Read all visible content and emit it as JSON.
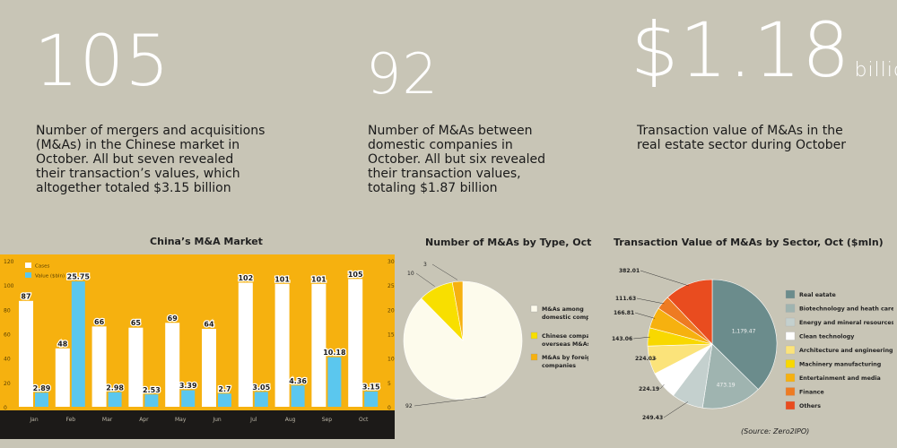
{
  "stats": [
    {
      "number": "105",
      "unit": "",
      "text": [
        "Number of mergers and acquisitions",
        "(M&As) in the Chinese market in",
        "October. All but seven revealed",
        "their transaction’s values, which",
        "altogether totaled $3.15 billion"
      ]
    },
    {
      "number": "92",
      "unit": "",
      "text": [
        "Number of M&As between",
        "domestic companies in",
        "October. All but six revealed",
        "their transaction values,",
        "totaling $1.87 billion"
      ]
    },
    {
      "number": "$1.18",
      "unit": "billion",
      "text": [
        "Transaction value of M&As in the",
        "real estate sector during October"
      ]
    }
  ],
  "colors": {
    "background": "#c8c5b6",
    "orange": "#f6b10f",
    "blue": "#5bc7ee",
    "dark": "#1c1a18"
  },
  "source": "(Source: Zero2IPO)",
  "chart_data": [
    {
      "type": "bar",
      "title": "China’s M&A Market",
      "categories": [
        "Jan",
        "Feb",
        "Mar",
        "Apr",
        "May",
        "Jun",
        "Jul",
        "Aug",
        "Sep",
        "Oct"
      ],
      "series": [
        {
          "name": "Cases",
          "axis": "left",
          "color": "#ffffff",
          "values": [
            87,
            48,
            66,
            65,
            69,
            64,
            102,
            101,
            101,
            105
          ]
        },
        {
          "name": "Value ($bln)",
          "axis": "right",
          "color": "#5bc7ee",
          "values": [
            2.89,
            25.75,
            2.98,
            2.53,
            3.39,
            2.7,
            3.05,
            4.36,
            10.18,
            3.15
          ]
        }
      ],
      "y_left": {
        "ticks": [
          "0",
          "20",
          "40",
          "60",
          "80",
          "100",
          "120"
        ],
        "lim": [
          0,
          120
        ]
      },
      "y_right": {
        "ticks": [
          "0",
          "5",
          "10",
          "15",
          "20",
          "25",
          "30"
        ],
        "lim": [
          0,
          30
        ]
      },
      "legend": "top-left",
      "grid": false
    },
    {
      "type": "pie",
      "title": "Number of M&As by Type, Oct",
      "slices": [
        {
          "label": "M&As among domestic companies",
          "label_lines": [
            "M&As among",
            "domestic companies"
          ],
          "value": 92,
          "color": "#fdfbec"
        },
        {
          "label": "Chinese companies’ overseas M&As",
          "label_lines": [
            "Chinese companies’",
            "overseas M&As"
          ],
          "value": 10,
          "color": "#f8df00"
        },
        {
          "label": "M&As by foreign companies",
          "label_lines": [
            "M&As by foreign",
            "companies"
          ],
          "value": 3,
          "color": "#f6b10f"
        }
      ]
    },
    {
      "type": "pie",
      "title": "Transaction Value of M&As by Sector, Oct ($mln)",
      "slices": [
        {
          "label": "Real eatate",
          "value": 1179.47,
          "display": "1,179.47",
          "color": "#6b8c8c"
        },
        {
          "label": "Biotechnology and heath care",
          "value": 473.19,
          "display": "473.19",
          "color": "#9fb4b0"
        },
        {
          "label": "Energy and mineral resources",
          "value": 249.43,
          "display": "249.43",
          "color": "#c4d0ce"
        },
        {
          "label": "Clean technology",
          "value": 224.19,
          "display": "224.19",
          "color": "#ffffff"
        },
        {
          "label": "Architecture and engineering",
          "value": 224.03,
          "display": "224.03",
          "color": "#fbe37a"
        },
        {
          "label": "Machinery manufacturing",
          "value": 143.06,
          "display": "143.06",
          "color": "#f8d800"
        },
        {
          "label": "Entertainment and media",
          "value": 166.81,
          "display": "166.81",
          "color": "#f6b10f"
        },
        {
          "label": "Finance",
          "value": 111.63,
          "display": "111.63",
          "color": "#ee7b22"
        },
        {
          "label": "Others",
          "value": 382.01,
          "display": "382.01",
          "color": "#e94c1f"
        }
      ]
    }
  ]
}
